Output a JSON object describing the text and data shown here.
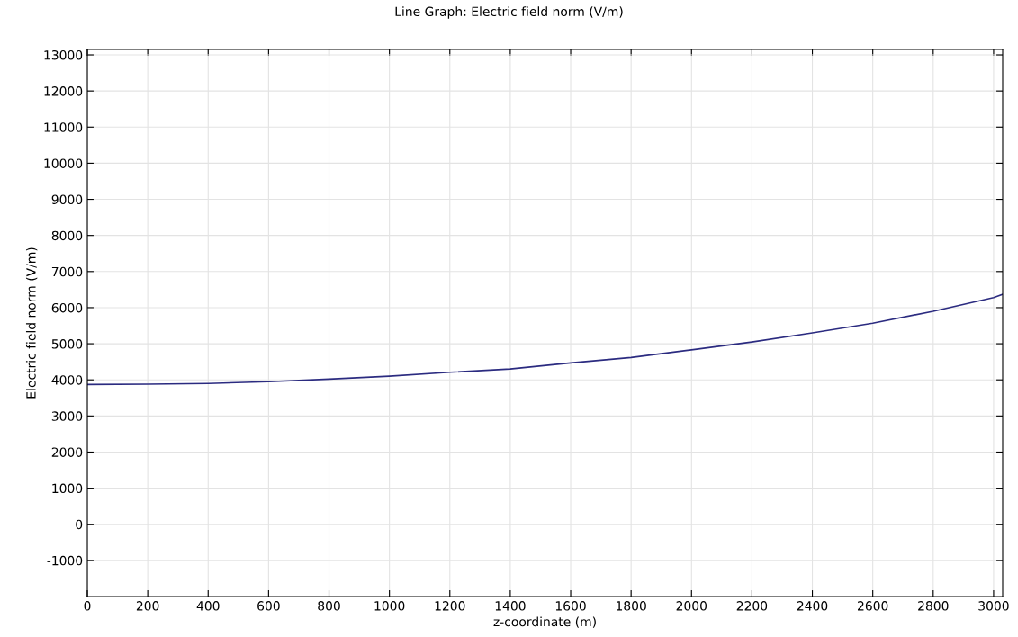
{
  "chart_data": {
    "type": "line",
    "title": "Line Graph: Electric field norm (V/m)",
    "xlabel": "z-coordinate (m)",
    "ylabel": "Electric field norm (V/m)",
    "x": [
      0,
      200,
      400,
      600,
      800,
      1000,
      1200,
      1400,
      1600,
      1800,
      2000,
      2200,
      2400,
      2600,
      2800,
      3000,
      3030
    ],
    "series": [
      {
        "color": "#2b2b80",
        "values": [
          3870,
          3880,
          3900,
          3950,
          4020,
          4100,
          4210,
          4300,
          4470,
          4620,
          4830,
          5050,
          5300,
          5570,
          5900,
          6280,
          6370
        ]
      }
    ],
    "xlim": [
      0,
      3030
    ],
    "xticks": [
      0,
      200,
      400,
      600,
      800,
      1000,
      1200,
      1400,
      1600,
      1800,
      2000,
      2200,
      2400,
      2600,
      2800,
      3000
    ],
    "ylim": [
      -2000,
      13150
    ],
    "yticks": [
      -1000,
      0,
      1000,
      2000,
      3000,
      4000,
      5000,
      6000,
      7000,
      8000,
      9000,
      10000,
      11000,
      12000,
      13000
    ],
    "grid": true,
    "marker": "none",
    "line_style": "solid"
  }
}
